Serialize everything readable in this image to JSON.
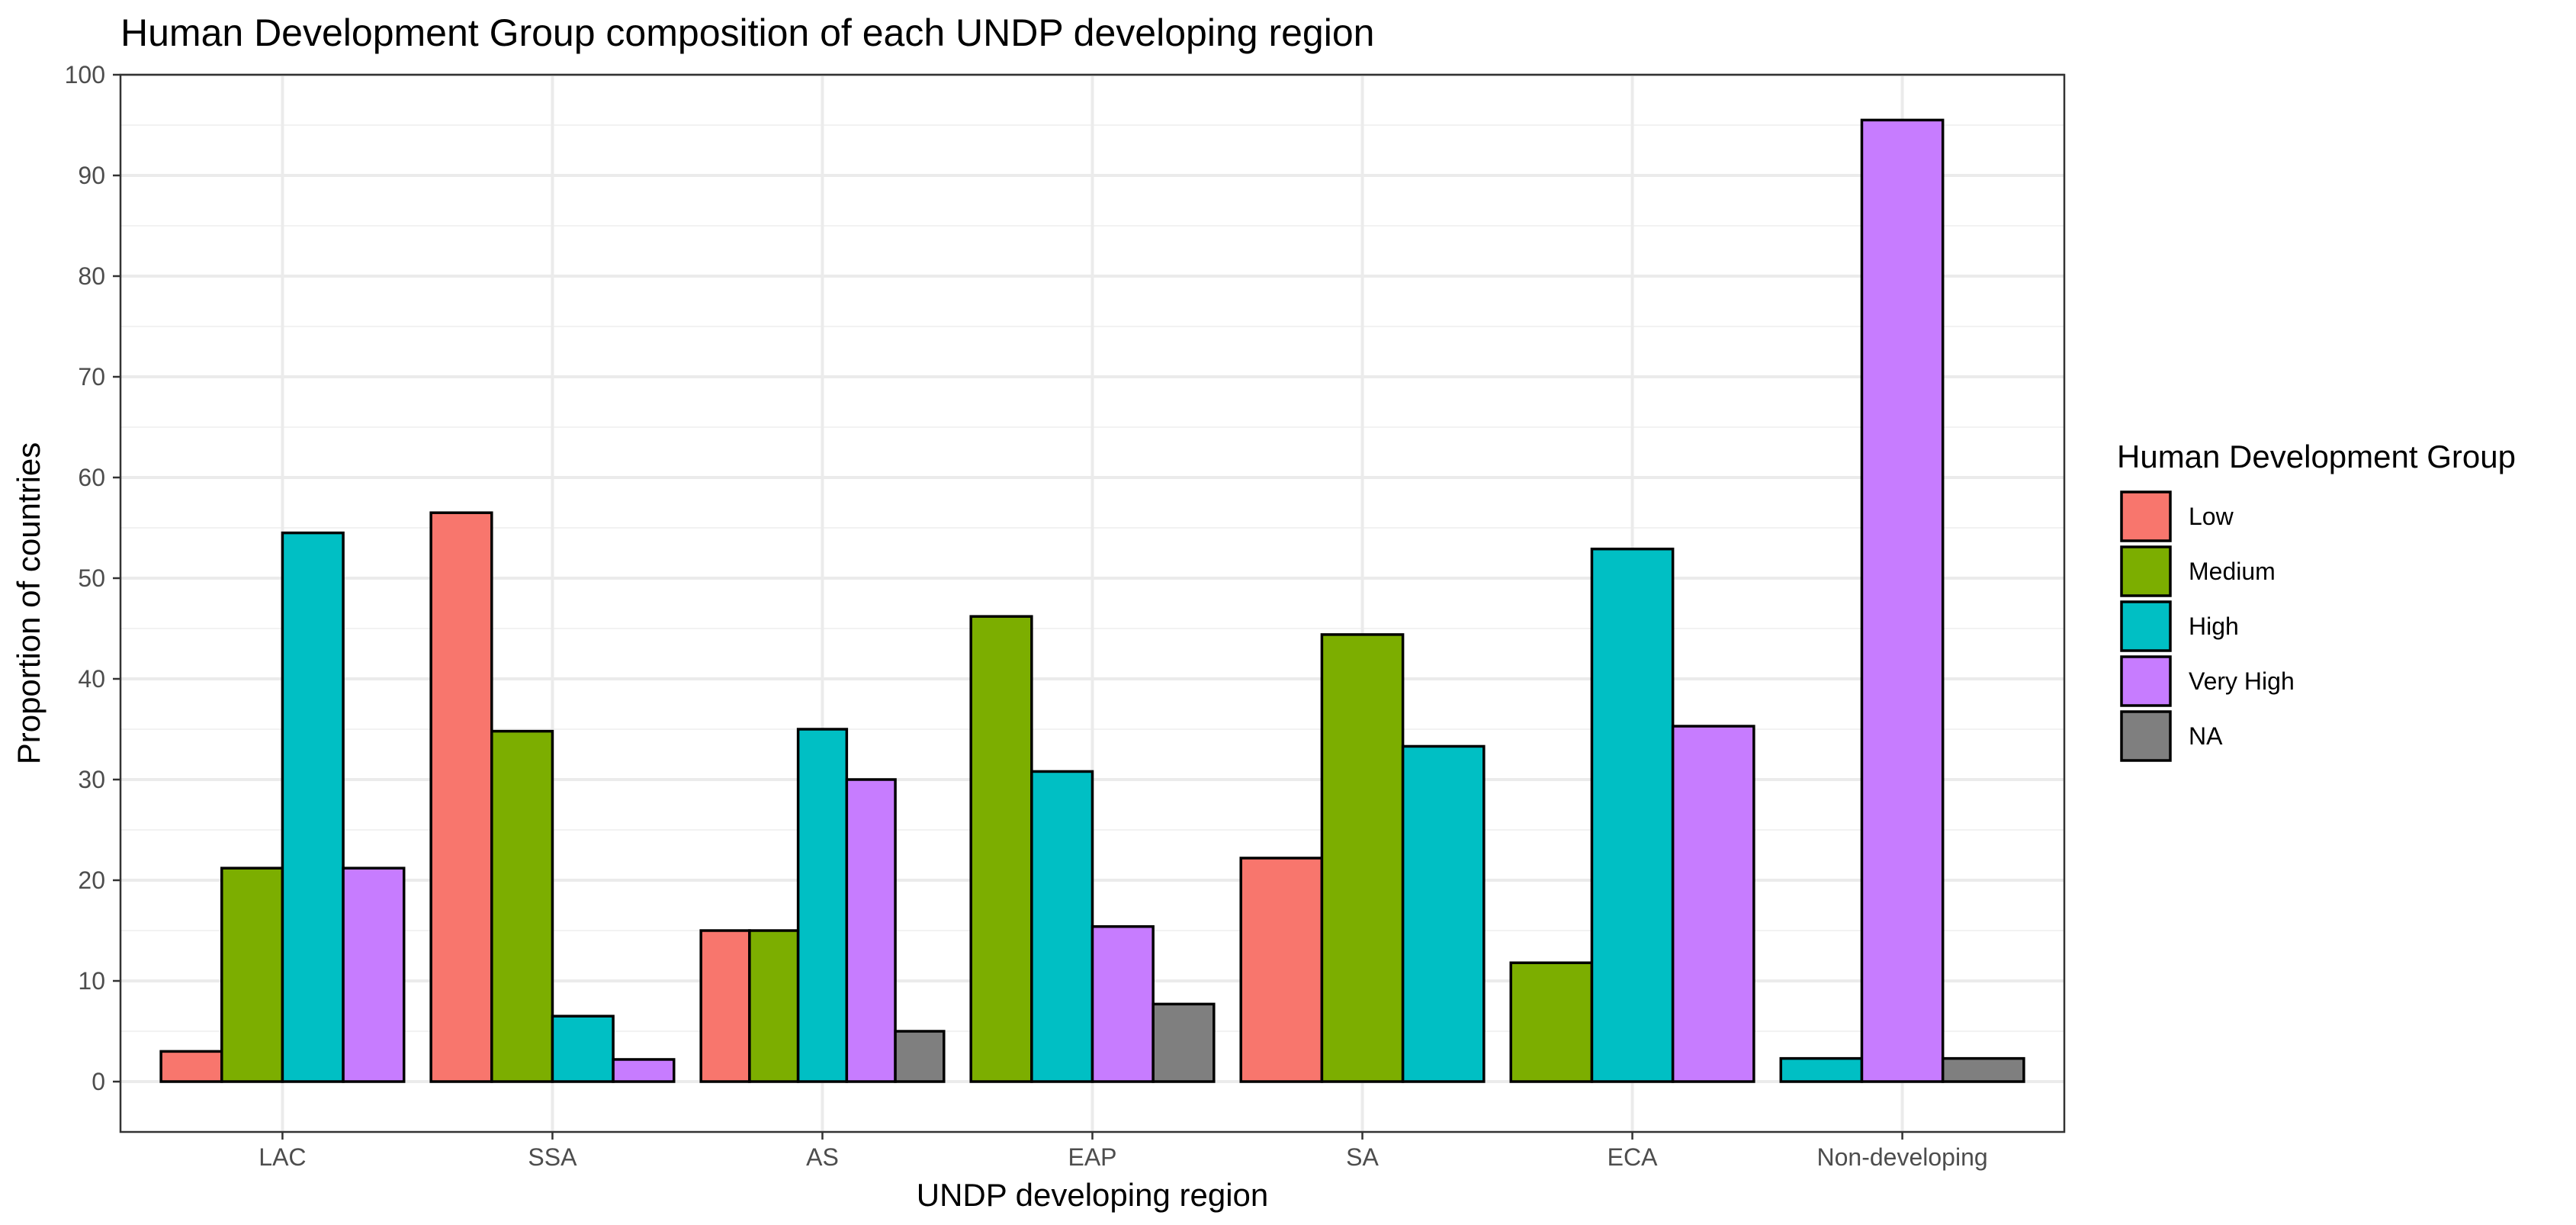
{
  "chart_data": {
    "type": "bar",
    "title": "Human Development Group composition of each UNDP developing region",
    "xlabel": "UNDP developing region",
    "ylabel": "Proportion of countries",
    "ylim": [
      -5,
      100
    ],
    "yticks": [
      0,
      10,
      20,
      30,
      40,
      50,
      60,
      70,
      80,
      90,
      100
    ],
    "grid": true,
    "legend_position": "right",
    "legend_title": "Human Development Group",
    "categories": [
      "LAC",
      "SSA",
      "AS",
      "EAP",
      "SA",
      "ECA",
      "Non-developing"
    ],
    "series": [
      {
        "name": "Low",
        "color": "#F8766D",
        "values": [
          3.0,
          56.5,
          15.0,
          null,
          22.2,
          null,
          null
        ]
      },
      {
        "name": "Medium",
        "color": "#7CAE00",
        "values": [
          21.2,
          34.8,
          15.0,
          46.2,
          44.4,
          11.8,
          null
        ]
      },
      {
        "name": "High",
        "color": "#00BFC4",
        "values": [
          54.5,
          6.5,
          35.0,
          30.8,
          33.3,
          52.9,
          2.3
        ]
      },
      {
        "name": "Very High",
        "color": "#C77CFF",
        "values": [
          21.2,
          2.2,
          30.0,
          15.4,
          null,
          35.3,
          95.5
        ]
      },
      {
        "name": "NA",
        "color": "#7F7F7F",
        "values": [
          null,
          null,
          5.0,
          7.7,
          null,
          null,
          2.3
        ]
      }
    ]
  }
}
